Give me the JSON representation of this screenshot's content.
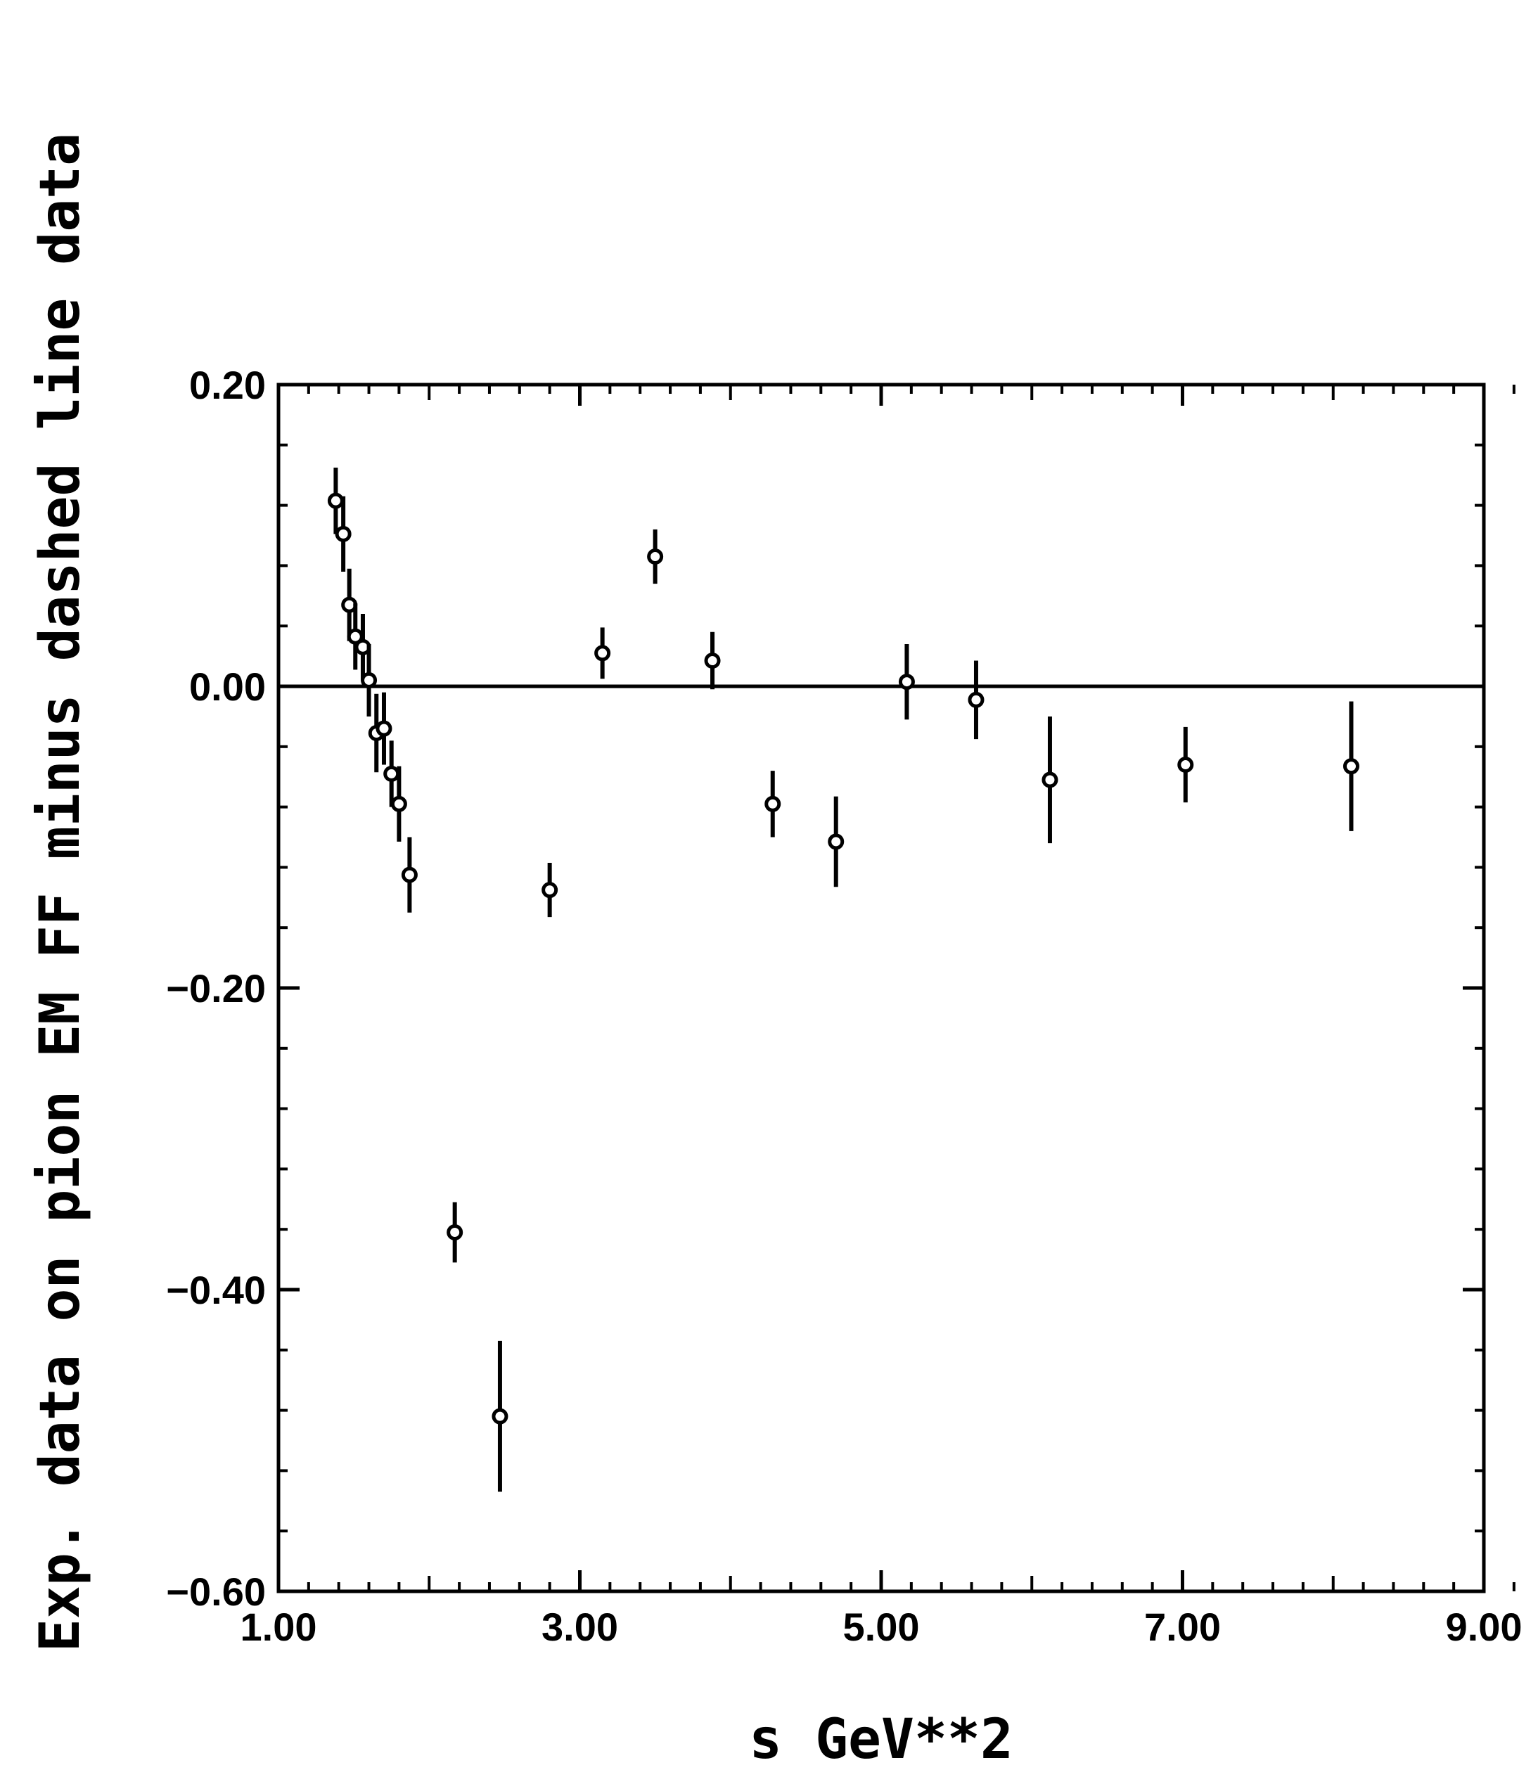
{
  "chart_data": {
    "type": "scatter",
    "title": "",
    "xlabel": "s GeV**2",
    "ylabel": "Exp. data on pion EM FF minus dashed line data",
    "xlim": [
      1.0,
      9.0
    ],
    "ylim": [
      -0.6,
      0.2
    ],
    "x_ticks": [
      1.0,
      3.0,
      5.0,
      7.0,
      9.0
    ],
    "x_tick_labels": [
      "1.00",
      "3.00",
      "5.00",
      "7.00",
      "9.00"
    ],
    "y_ticks": [
      0.2,
      0.0,
      -0.2,
      -0.4,
      -0.6
    ],
    "y_tick_labels": [
      "0.20",
      "0.00",
      "−0.20",
      "−0.40",
      "−0.60"
    ],
    "grid": false,
    "legend": "none",
    "reference_line": {
      "y": 0.0
    },
    "marker": "open-circle",
    "color": "#000000",
    "series": [
      {
        "points": [
          {
            "x": 1.38,
            "y": 0.123,
            "err": 0.022
          },
          {
            "x": 1.43,
            "y": 0.101,
            "err": 0.025
          },
          {
            "x": 1.47,
            "y": 0.054,
            "err": 0.024
          },
          {
            "x": 1.51,
            "y": 0.033,
            "err": 0.022
          },
          {
            "x": 1.56,
            "y": 0.026,
            "err": 0.022
          },
          {
            "x": 1.6,
            "y": 0.004,
            "err": 0.024
          },
          {
            "x": 1.65,
            "y": -0.031,
            "err": 0.026
          },
          {
            "x": 1.7,
            "y": -0.028,
            "err": 0.024
          },
          {
            "x": 1.75,
            "y": -0.058,
            "err": 0.022
          },
          {
            "x": 1.8,
            "y": -0.078,
            "err": 0.025
          },
          {
            "x": 1.87,
            "y": -0.125,
            "err": 0.025
          },
          {
            "x": 2.17,
            "y": -0.362,
            "err": 0.02
          },
          {
            "x": 2.47,
            "y": -0.484,
            "err": 0.05
          },
          {
            "x": 2.8,
            "y": -0.135,
            "err": 0.018
          },
          {
            "x": 3.15,
            "y": 0.022,
            "err": 0.017
          },
          {
            "x": 3.5,
            "y": 0.086,
            "err": 0.018
          },
          {
            "x": 3.88,
            "y": 0.017,
            "err": 0.019
          },
          {
            "x": 4.28,
            "y": -0.078,
            "err": 0.022
          },
          {
            "x": 4.7,
            "y": -0.103,
            "err": 0.03
          },
          {
            "x": 5.17,
            "y": 0.003,
            "err": 0.025
          },
          {
            "x": 5.63,
            "y": -0.009,
            "err": 0.026
          },
          {
            "x": 6.12,
            "y": -0.062,
            "err": 0.042
          },
          {
            "x": 7.02,
            "y": -0.052,
            "err": 0.025
          },
          {
            "x": 8.12,
            "y": -0.053,
            "err": 0.043
          }
        ]
      }
    ]
  }
}
